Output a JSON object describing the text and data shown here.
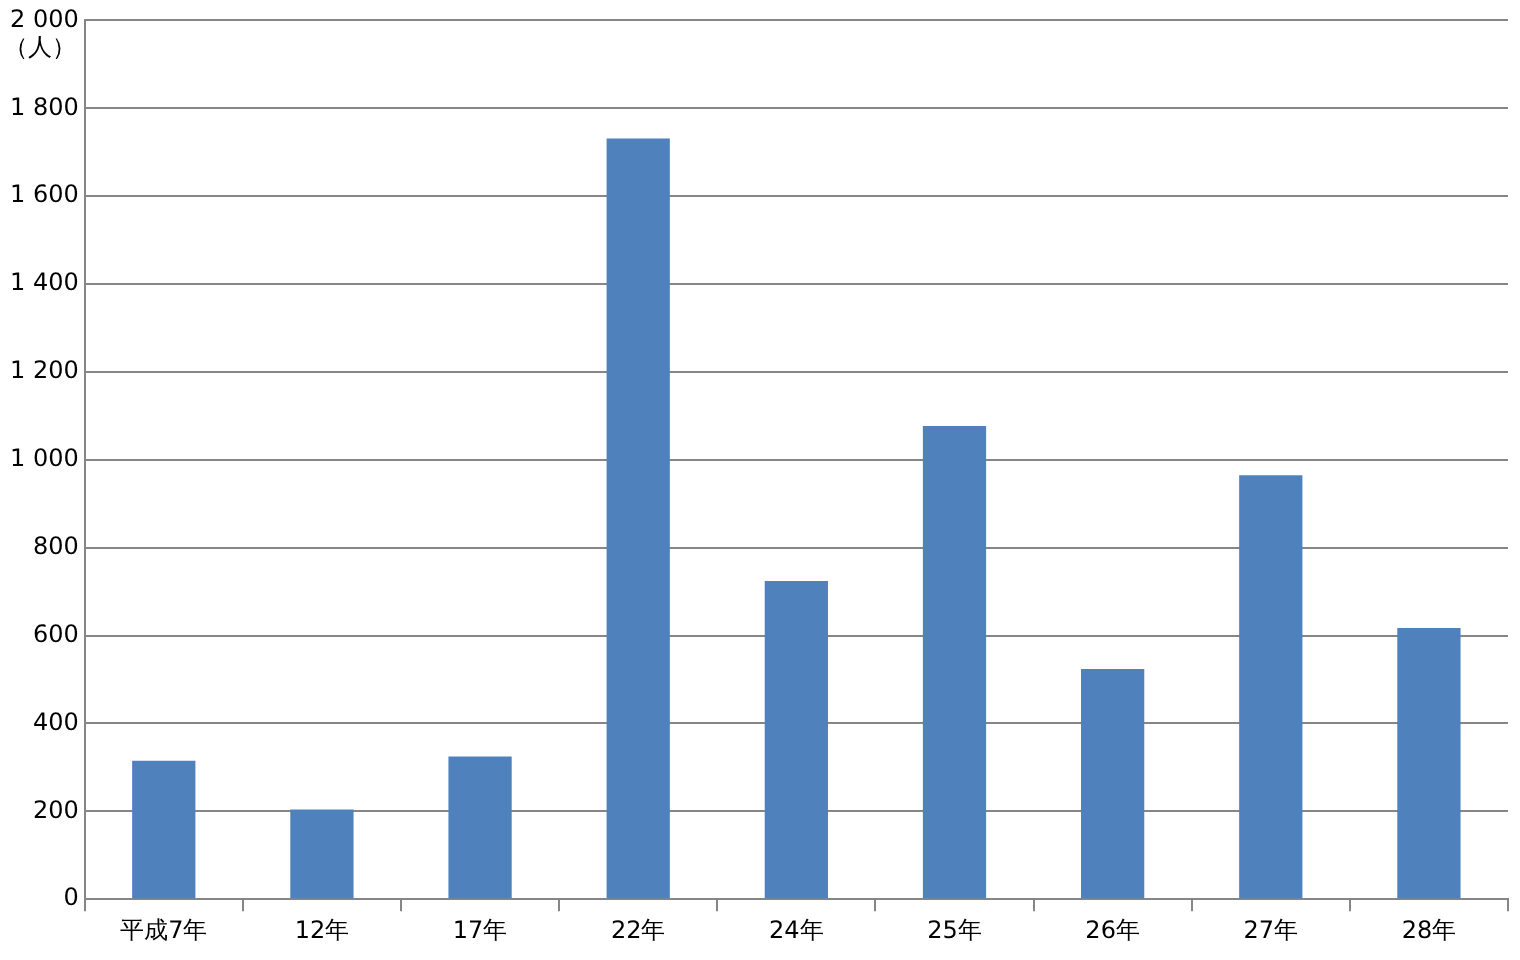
{
  "chart_data": {
    "type": "bar",
    "ylabel": "（人）",
    "categories": [
      "平成7年",
      "12年",
      "17年",
      "22年",
      "24年",
      "25年",
      "26年",
      "27年",
      "28年"
    ],
    "values": [
      315,
      204,
      325,
      1731,
      724,
      1077,
      524,
      965,
      617
    ],
    "color": "#4f81bd",
    "ylim": [
      0,
      2000
    ],
    "yticks": [
      {
        "value": 0,
        "label": "0"
      },
      {
        "value": 200,
        "label": "200"
      },
      {
        "value": 400,
        "label": "400"
      },
      {
        "value": 600,
        "label": "600"
      },
      {
        "value": 800,
        "label": "800"
      },
      {
        "value": 1000,
        "label": "1 000"
      },
      {
        "value": 1200,
        "label": "1 200"
      },
      {
        "value": 1400,
        "label": "1 400"
      },
      {
        "value": 1600,
        "label": "1 600"
      },
      {
        "value": 1800,
        "label": "1 800"
      },
      {
        "value": 2000,
        "label": "2 000"
      }
    ],
    "grid": "y",
    "legend": false
  }
}
